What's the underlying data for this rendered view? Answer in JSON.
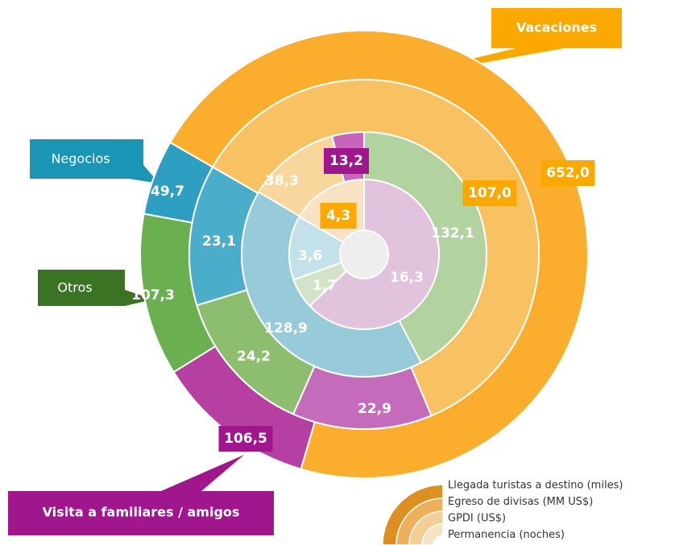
{
  "chart_data": {
    "type": "multi-ring-donut",
    "categories": [
      "Vacaciones",
      "Negocios",
      "Otros",
      "Visita a familiares / amigos"
    ],
    "rings": [
      {
        "name": "Llegada turistas a destino (miles)",
        "values": [
          652.0,
          49.7,
          107.3,
          106.5
        ],
        "value_labels": [
          "652,0",
          "49,7",
          "107,3",
          "106,5"
        ],
        "colors": [
          "#fbae2d",
          "#2e9fc0",
          "#6aaf50",
          "#b63fa2"
        ]
      },
      {
        "name": "Egreso de divisas (MM US$)",
        "values": [
          107.0,
          23.1,
          24.2,
          22.9
        ],
        "value_labels": [
          "107,0",
          "23,1",
          "24,2",
          "22,9"
        ],
        "colors": [
          "#f8c262",
          "#4aaecb",
          "#8dbe6f",
          "#c56bbb"
        ]
      },
      {
        "name": "GPDI (US$)",
        "values": [
          38.3,
          128.9,
          132.1,
          13.2
        ],
        "value_labels": [
          "38,3",
          "128,9",
          "132,1",
          "13,2"
        ],
        "colors": [
          "#f9d79c",
          "#98cbd9",
          "#b2d3a0",
          "#c765bd"
        ]
      },
      {
        "name": "Permanencia (noches)",
        "values": [
          4.3,
          3.6,
          1.7,
          16.3
        ],
        "value_labels": [
          "4,3",
          "3,6",
          "1,7",
          "16,3"
        ],
        "colors": [
          "#f7e2c3",
          "#c3e1e8",
          "#d3e3c8",
          "#e2c3de"
        ]
      }
    ]
  }
}
